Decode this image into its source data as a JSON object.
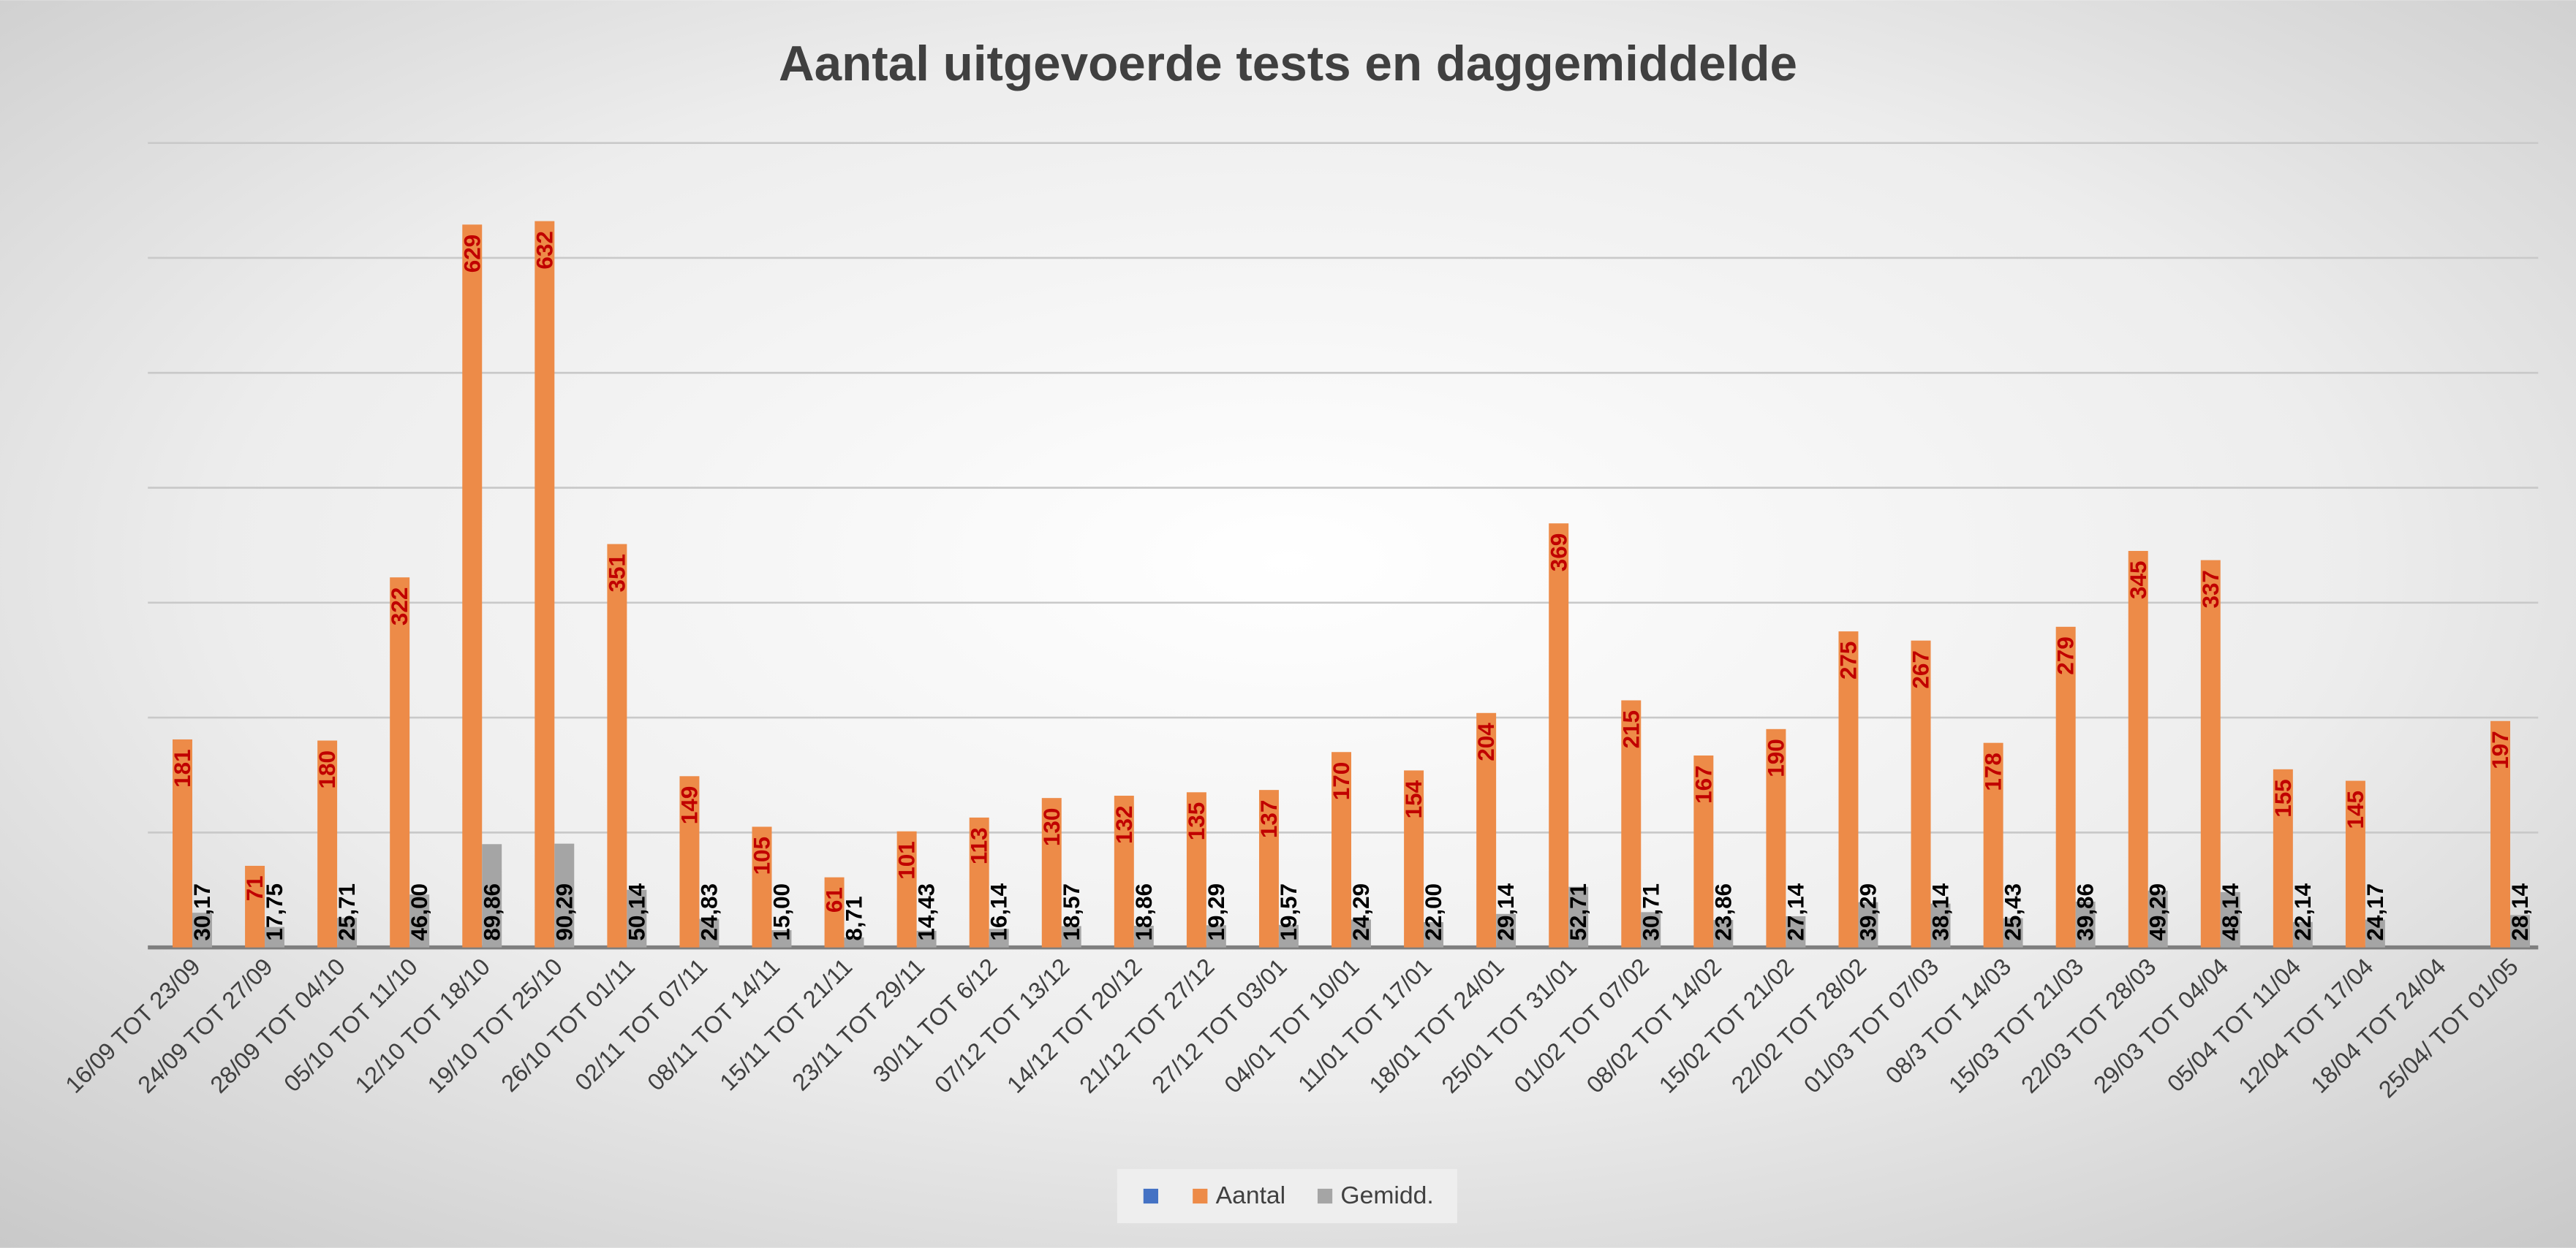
{
  "chart_data": {
    "type": "bar",
    "title": "Aantal uitgevoerde tests en daggemiddelde",
    "categories": [
      "16/09 TOT 23/09",
      "24/09 TOT 27/09",
      "28/09 TOT 04/10",
      "05/10 TOT 11/10",
      "12/10 TOT 18/10",
      "19/10 TOT 25/10",
      "26/10 TOT 01/11",
      "02/11 TOT 07/11",
      "08/11 TOT 14/11",
      "15/11 TOT 21/11",
      "23/11 TOT 29/11",
      "30/11 TOT 6/12",
      "07/12 TOT 13/12",
      "14/12 TOT 20/12",
      "21/12 TOT 27/12",
      "27/12 TOT 03/01",
      "04/01 TOT 10/01",
      "11/01 TOT 17/01",
      "18/01 TOT 24/01",
      "25/01 TOT 31/01",
      "01/02 TOT 07/02",
      "08/02 TOT 14/02",
      "15/02 TOT 21/02",
      "22/02 TOT 28/02",
      "01/03 TOT 07/03",
      "08/3 TOT 14/03",
      "15/03 TOT 21/03",
      "22/03 TOT 28/03",
      "29/03 TOT 04/04",
      "05/04 TOT 11/04",
      "12/04 TOT 17/04",
      "18/04 TOT 24/04",
      "25/04/ TOT 01/05"
    ],
    "series": [
      {
        "name": "Aantal",
        "color": "#ed8b48",
        "label_color": "#c00000",
        "values": [
          181,
          71,
          180,
          322,
          629,
          632,
          351,
          149,
          105,
          61,
          101,
          113,
          130,
          132,
          135,
          137,
          170,
          154,
          204,
          369,
          215,
          167,
          190,
          275,
          267,
          178,
          279,
          345,
          337,
          155,
          145,
          null,
          197
        ]
      },
      {
        "name": "Gemidd.",
        "color": "#a5a5a5",
        "label_color": "#000000",
        "values": [
          30.17,
          17.75,
          25.71,
          46.0,
          89.86,
          90.29,
          50.14,
          24.83,
          15.0,
          8.71,
          14.43,
          16.14,
          18.57,
          18.86,
          19.29,
          19.57,
          24.29,
          22.0,
          29.14,
          52.71,
          30.71,
          23.86,
          27.14,
          39.29,
          38.14,
          25.43,
          39.86,
          49.29,
          48.14,
          22.14,
          24.17,
          null,
          28.14
        ],
        "value_labels": [
          "30,17",
          "17,75",
          "25,71",
          "46,00",
          "89,86",
          "90,29",
          "50,14",
          "24,83",
          "15,00",
          "8,71",
          "14,43",
          "16,14",
          "18,57",
          "18,86",
          "19,29",
          "19,57",
          "24,29",
          "22,00",
          "29,14",
          "52,71",
          "30,71",
          "23,86",
          "27,14",
          "39,29",
          "38,14",
          "25,43",
          "39,86",
          "49,29",
          "48,14",
          "22,14",
          "24,17",
          null,
          "28,14"
        ]
      }
    ],
    "ylim": [
      0,
      700
    ],
    "yticks": [
      0,
      100,
      200,
      300,
      400,
      500,
      600,
      700
    ],
    "grid": true
  }
}
